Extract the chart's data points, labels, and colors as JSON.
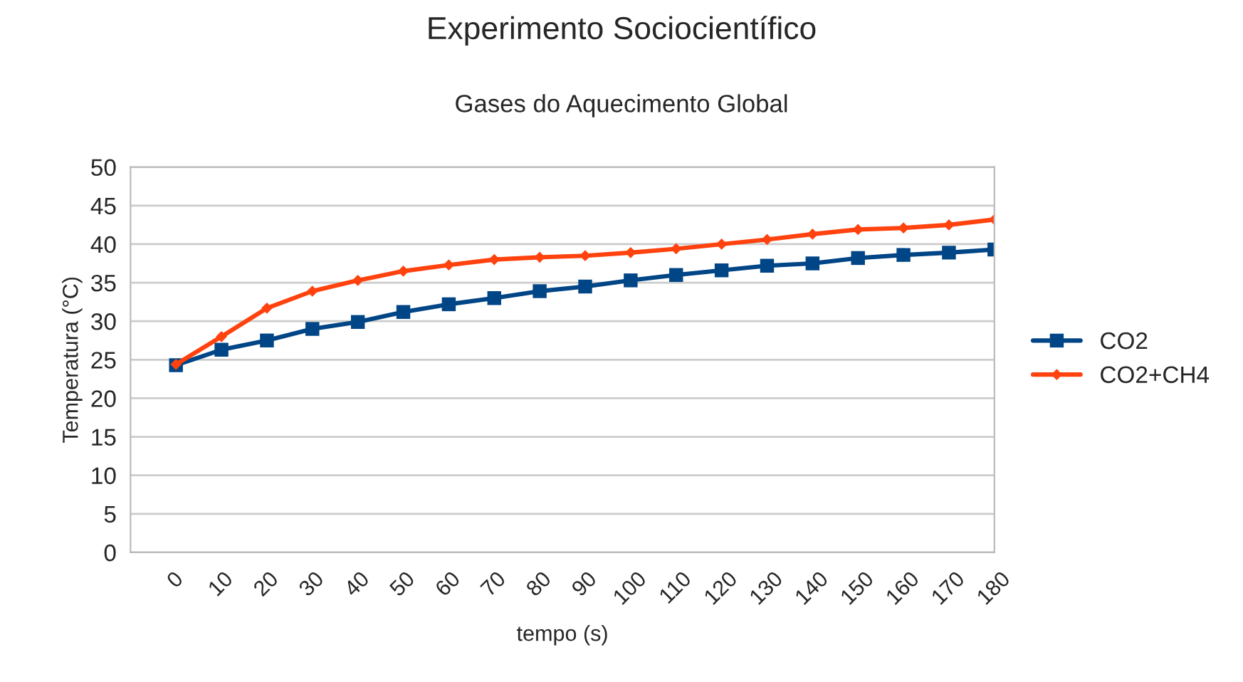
{
  "chart_data": {
    "type": "line",
    "title": "Experimento Sociocientífico",
    "subtitle": "Gases do Aquecimento Global",
    "xlabel": "tempo (s)",
    "ylabel": "Temperatura (°C)",
    "categories": [
      "0",
      "10",
      "20",
      "30",
      "40",
      "50",
      "60",
      "70",
      "80",
      "90",
      "100",
      "110",
      "120",
      "130",
      "140",
      "150",
      "160",
      "170",
      "180"
    ],
    "series": [
      {
        "name": "CO2",
        "color": "#004586",
        "marker": "square",
        "values": [
          24.3,
          26.3,
          27.5,
          29,
          29.9,
          31.2,
          32.2,
          33,
          33.9,
          34.5,
          35.3,
          36,
          36.6,
          37.2,
          37.5,
          38.2,
          38.6,
          38.9,
          39.3
        ]
      },
      {
        "name": "CO2+CH4",
        "color": "#ff420e",
        "marker": "diamond",
        "values": [
          24.4,
          28,
          31.7,
          33.9,
          35.3,
          36.5,
          37.3,
          38,
          38.3,
          38.5,
          38.9,
          39.4,
          40,
          40.6,
          41.3,
          41.9,
          42.1,
          42.5,
          43.2
        ]
      }
    ],
    "ylim": [
      0,
      50
    ],
    "yticks": [
      0,
      5,
      10,
      15,
      20,
      25,
      30,
      35,
      40,
      45,
      50
    ],
    "grid": "y",
    "legend": "right",
    "line_style": "solid"
  }
}
